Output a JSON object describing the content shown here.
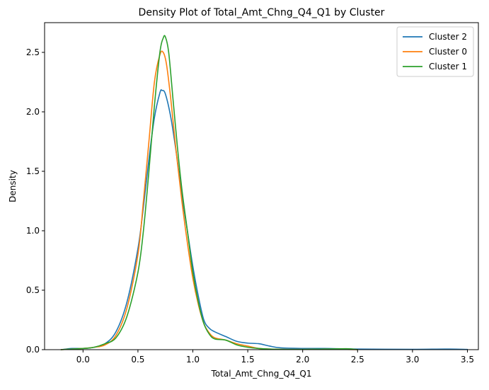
{
  "chart_data": {
    "type": "line",
    "title": "Density Plot of Total_Amt_Chng_Q4_Q1 by Cluster",
    "xlabel": "Total_Amt_Chng_Q4_Q1",
    "ylabel": "Density",
    "xlim": [
      -0.35,
      3.6
    ],
    "ylim": [
      0,
      2.75
    ],
    "xticks": [
      0.0,
      0.5,
      1.0,
      1.5,
      2.0,
      2.5,
      3.0,
      3.5
    ],
    "xtick_labels": [
      "0.0",
      "0.5",
      "1.0",
      "1.5",
      "2.0",
      "2.5",
      "3.0",
      "3.5"
    ],
    "yticks": [
      0.0,
      0.5,
      1.0,
      1.5,
      2.0,
      2.5
    ],
    "ytick_labels": [
      "0.0",
      "0.5",
      "1.0",
      "1.5",
      "2.0",
      "2.5"
    ],
    "grid": false,
    "legend_position": "top-right",
    "series": [
      {
        "name": "Cluster 2",
        "color": "#1f77b4",
        "x": [
          -0.2,
          -0.1,
          0.0,
          0.1,
          0.2,
          0.3,
          0.4,
          0.5,
          0.55,
          0.6,
          0.65,
          0.7,
          0.72,
          0.75,
          0.8,
          0.85,
          0.9,
          0.95,
          1.0,
          1.05,
          1.1,
          1.15,
          1.2,
          1.3,
          1.4,
          1.5,
          1.6,
          1.7,
          1.8,
          2.0,
          2.2,
          2.5,
          3.0,
          3.3,
          3.5
        ],
        "y": [
          0.0,
          0.01,
          0.01,
          0.02,
          0.05,
          0.15,
          0.4,
          0.85,
          1.2,
          1.6,
          1.95,
          2.16,
          2.18,
          2.15,
          1.95,
          1.65,
          1.3,
          1.0,
          0.7,
          0.45,
          0.25,
          0.18,
          0.15,
          0.11,
          0.07,
          0.055,
          0.05,
          0.03,
          0.015,
          0.01,
          0.01,
          0.005,
          0.003,
          0.005,
          0.002
        ]
      },
      {
        "name": "Cluster 0",
        "color": "#ff7f0e",
        "x": [
          -0.2,
          -0.1,
          0.0,
          0.1,
          0.2,
          0.3,
          0.4,
          0.5,
          0.55,
          0.6,
          0.65,
          0.7,
          0.73,
          0.76,
          0.8,
          0.85,
          0.9,
          0.95,
          1.0,
          1.05,
          1.1,
          1.15,
          1.2,
          1.3,
          1.4,
          1.5,
          1.6,
          1.7,
          1.8,
          2.0,
          2.2,
          2.4,
          2.5
        ],
        "y": [
          0.0,
          0.005,
          0.01,
          0.02,
          0.04,
          0.12,
          0.35,
          0.8,
          1.25,
          1.75,
          2.25,
          2.48,
          2.5,
          2.4,
          2.1,
          1.65,
          1.25,
          0.9,
          0.6,
          0.38,
          0.22,
          0.14,
          0.1,
          0.08,
          0.05,
          0.03,
          0.01,
          0.005,
          0.003,
          0.002,
          0.005,
          0.002,
          0.0
        ]
      },
      {
        "name": "Cluster 1",
        "color": "#2ca02c",
        "x": [
          -0.2,
          -0.1,
          0.0,
          0.1,
          0.2,
          0.3,
          0.4,
          0.5,
          0.55,
          0.6,
          0.65,
          0.7,
          0.73,
          0.75,
          0.78,
          0.82,
          0.86,
          0.9,
          0.95,
          1.0,
          1.05,
          1.1,
          1.15,
          1.2,
          1.3,
          1.4,
          1.5,
          1.6,
          1.7,
          1.8,
          2.0,
          2.2,
          2.4,
          2.5
        ],
        "y": [
          0.0,
          0.005,
          0.01,
          0.02,
          0.05,
          0.1,
          0.28,
          0.65,
          1.0,
          1.5,
          2.05,
          2.5,
          2.62,
          2.63,
          2.5,
          2.1,
          1.7,
          1.35,
          1.0,
          0.65,
          0.4,
          0.22,
          0.13,
          0.09,
          0.08,
          0.04,
          0.02,
          0.01,
          0.005,
          0.003,
          0.002,
          0.005,
          0.008,
          0.0
        ]
      }
    ]
  }
}
